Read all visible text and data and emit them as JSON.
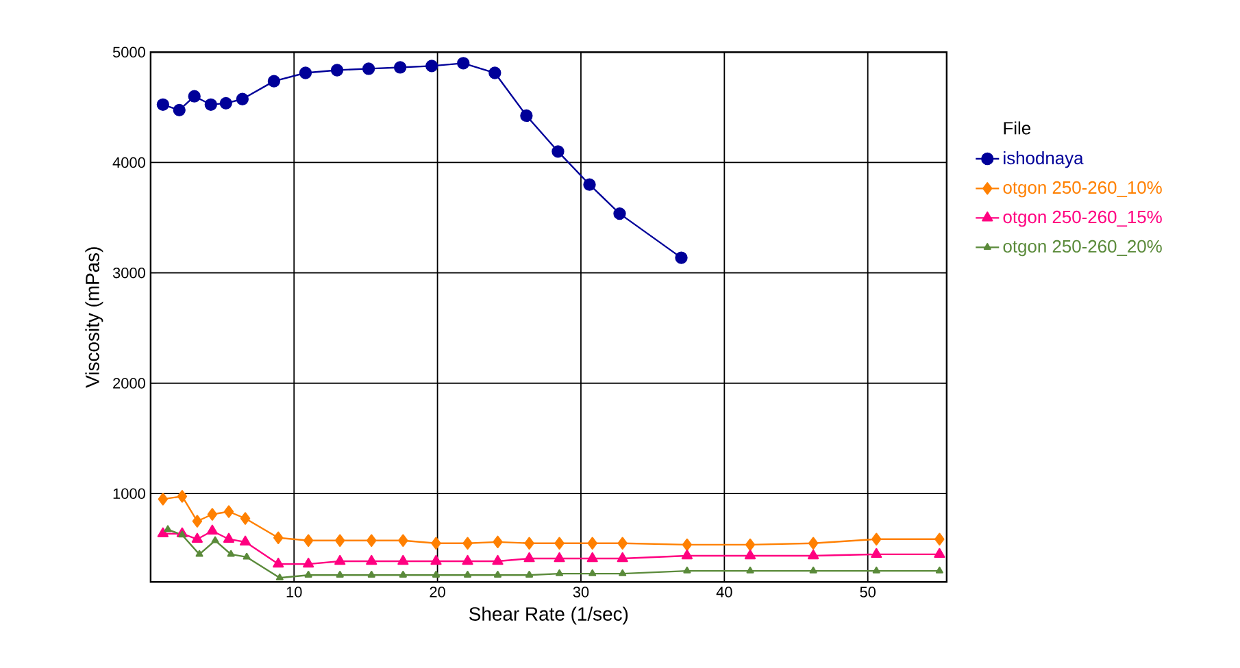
{
  "chart_data": {
    "type": "line",
    "xlabel": "Shear Rate (1/sec)",
    "ylabel": "Viscosity (mPas)",
    "legend_title": "File",
    "legend": "right",
    "grid": true,
    "line_style": "solid",
    "xlim": [
      0,
      55.5
    ],
    "ylim": [
      200,
      5000
    ],
    "xticks": [
      10,
      20,
      30,
      40,
      50
    ],
    "yticks": [
      1000,
      2000,
      3000,
      4000,
      5000
    ],
    "series": [
      {
        "name": "ishodnaya",
        "color": "#000099",
        "marker": "circle",
        "x": [
          0.86,
          2.0,
          3.05,
          4.2,
          5.25,
          6.4,
          8.6,
          10.8,
          13.0,
          15.2,
          17.4,
          19.6,
          21.8,
          24.0,
          26.2,
          28.4,
          30.6,
          32.7,
          37.0
        ],
        "values": [
          4525,
          4475,
          4600,
          4525,
          4537,
          4575,
          4737,
          4812,
          4837,
          4850,
          4862,
          4875,
          4900,
          4812,
          4425,
          4100,
          3800,
          3537,
          3137
        ]
      },
      {
        "name": "otgon 250-260_10%",
        "color": "#ff8000",
        "marker": "diamond",
        "x": [
          0.86,
          2.2,
          3.25,
          4.3,
          5.45,
          6.6,
          8.9,
          11.0,
          13.2,
          15.4,
          17.6,
          19.9,
          22.1,
          24.2,
          26.4,
          28.5,
          30.8,
          32.9,
          37.4,
          41.8,
          46.2,
          50.6,
          55.0
        ],
        "values": [
          950,
          975,
          750,
          812,
          837,
          775,
          600,
          575,
          575,
          575,
          575,
          550,
          550,
          562,
          550,
          550,
          550,
          550,
          537,
          537,
          550,
          587,
          587
        ]
      },
      {
        "name": "otgon 250-260_15%",
        "color": "#ff0080",
        "marker": "triangle",
        "x": [
          0.86,
          2.2,
          3.25,
          4.3,
          5.45,
          6.6,
          8.9,
          11.0,
          13.2,
          15.4,
          17.6,
          19.9,
          22.1,
          24.2,
          26.4,
          28.5,
          30.8,
          32.9,
          37.4,
          41.8,
          46.2,
          50.6,
          55.0
        ],
        "values": [
          637,
          637,
          587,
          662,
          587,
          562,
          362,
          362,
          387,
          387,
          387,
          387,
          387,
          387,
          412,
          412,
          412,
          412,
          437,
          437,
          437,
          450,
          450
        ]
      },
      {
        "name": "otgon 250-260_20%",
        "color": "#5a8a3a",
        "marker": "triangle",
        "x": [
          1.2,
          2.2,
          3.4,
          4.5,
          5.6,
          6.7,
          9.0,
          11.0,
          13.2,
          15.4,
          17.6,
          19.9,
          22.1,
          24.2,
          26.4,
          28.5,
          30.8,
          32.9,
          37.4,
          41.8,
          46.2,
          50.6,
          55.0
        ],
        "values": [
          675,
          625,
          450,
          575,
          450,
          425,
          237,
          262,
          262,
          262,
          262,
          262,
          262,
          262,
          262,
          275,
          275,
          275,
          300,
          300,
          300,
          300,
          300
        ]
      }
    ]
  }
}
